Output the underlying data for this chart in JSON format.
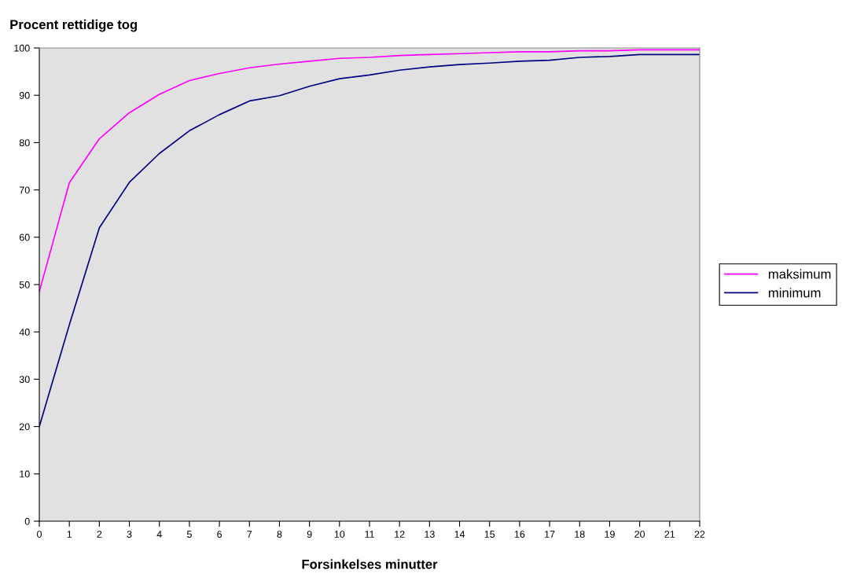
{
  "chart_data": {
    "type": "line",
    "title": "Procent rettidige tog",
    "xlabel": "Forsinkelses minutter",
    "x": [
      0,
      1,
      2,
      3,
      4,
      5,
      6,
      7,
      8,
      9,
      10,
      11,
      12,
      13,
      14,
      15,
      16,
      17,
      18,
      19,
      20,
      21,
      22
    ],
    "series": [
      {
        "name": "maksimum",
        "color": "#ff00ff",
        "values": [
          48.5,
          71.5,
          80.8,
          86.3,
          90.2,
          93.1,
          94.6,
          95.8,
          96.6,
          97.2,
          97.8,
          98.0,
          98.4,
          98.6,
          98.8,
          99.0,
          99.2,
          99.2,
          99.4,
          99.4,
          99.6,
          99.6,
          99.6
        ]
      },
      {
        "name": "minimum",
        "color": "#000080",
        "values": [
          20,
          41.5,
          62,
          71.6,
          77.7,
          82.5,
          85.9,
          88.8,
          89.9,
          91.9,
          93.5,
          94.3,
          95.3,
          96.0,
          96.5,
          96.8,
          97.2,
          97.4,
          98.0,
          98.2,
          98.6,
          98.6,
          98.6
        ]
      }
    ],
    "xlim": [
      0,
      22
    ],
    "xticks": [
      0,
      1,
      2,
      3,
      4,
      5,
      6,
      7,
      8,
      9,
      10,
      11,
      12,
      13,
      14,
      15,
      16,
      17,
      18,
      19,
      20,
      21,
      22
    ],
    "ylim": [
      0,
      100
    ],
    "yticks": [
      0,
      10,
      20,
      30,
      40,
      50,
      60,
      70,
      80,
      90,
      100
    ],
    "grid": false,
    "legend": "right",
    "marker": "none",
    "line_style": "solid"
  }
}
